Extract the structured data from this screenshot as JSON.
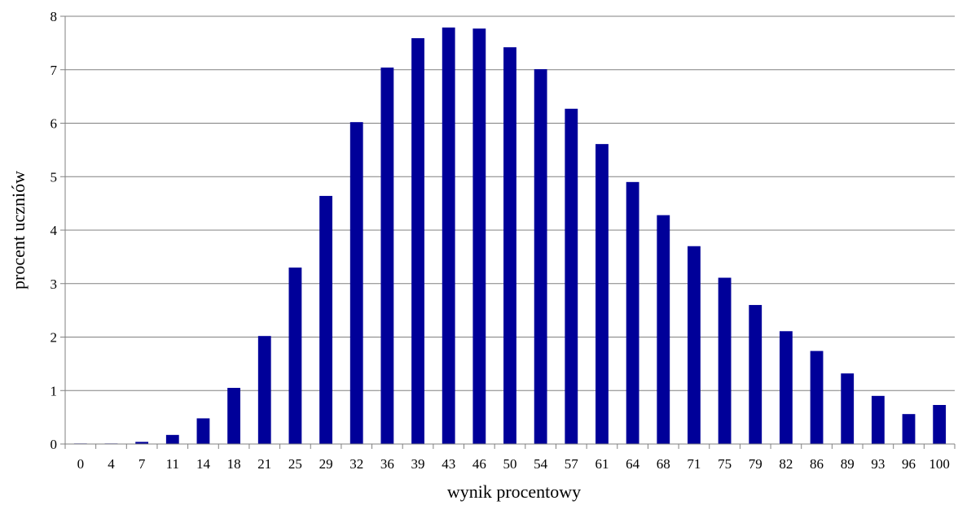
{
  "chart_data": {
    "type": "bar",
    "title": "",
    "xlabel": "wynik procentowy",
    "ylabel": "procent uczniów",
    "ylim": [
      0,
      8
    ],
    "yticks": [
      0,
      1,
      2,
      3,
      4,
      5,
      6,
      7,
      8
    ],
    "grid": true,
    "categories": [
      "0",
      "4",
      "7",
      "11",
      "14",
      "18",
      "21",
      "25",
      "29",
      "32",
      "36",
      "39",
      "43",
      "46",
      "50",
      "54",
      "57",
      "61",
      "64",
      "68",
      "71",
      "75",
      "79",
      "82",
      "86",
      "89",
      "93",
      "96",
      "100"
    ],
    "values": [
      0.01,
      0.01,
      0.04,
      0.17,
      0.48,
      1.05,
      2.02,
      3.3,
      4.64,
      6.02,
      7.04,
      7.59,
      7.79,
      7.77,
      7.42,
      7.01,
      6.27,
      5.61,
      4.9,
      4.28,
      3.7,
      3.11,
      2.6,
      2.11,
      1.74,
      1.32,
      0.9,
      0.56,
      0.73
    ],
    "colors": {
      "bar": "#000099",
      "grid": "#808080",
      "axis": "#808080"
    }
  }
}
